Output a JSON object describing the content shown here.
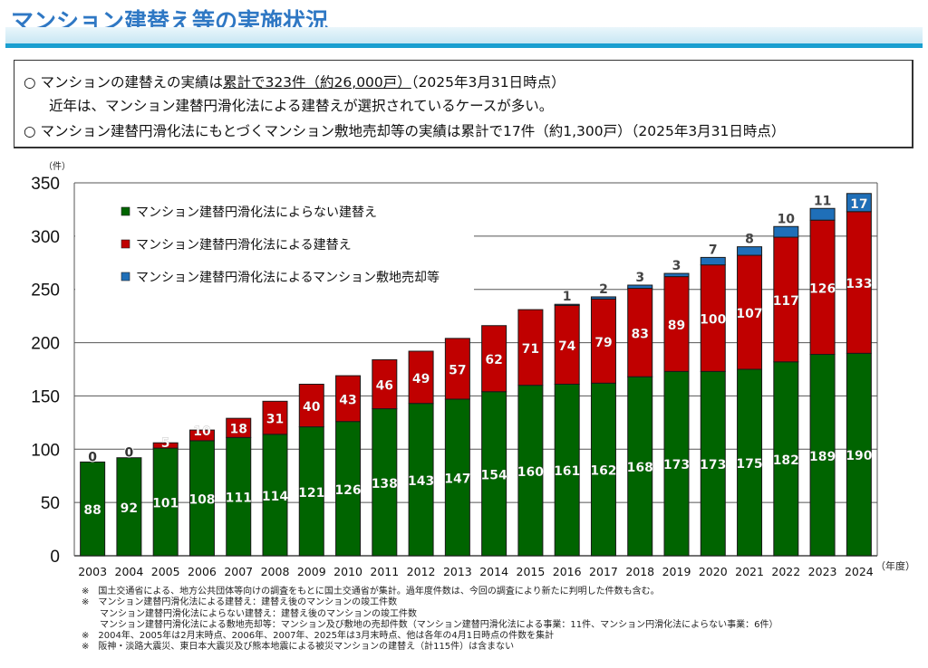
{
  "header": {
    "title": "マンション建替え等の実施状況"
  },
  "summary": {
    "line1_prefix": "○ マンションの建替えの実績は",
    "line1_underlined": "累計で323件（約26,000戸）",
    "line1_suffix": "（2025年3月31日時点）",
    "line2": "近年は、マンション建替円滑化法による建替えが選択されているケースが多い。",
    "line3": "○ マンション建替円滑化法にもとづくマンション敷地売却等の実績は累計で17件（約1,300戸）（2025年3月31日時点）"
  },
  "notes": [
    "※　国土交通省による、地方公共団体等向けの調査をもとに国土交通省が集計。過年度件数は、今回の調査により新たに判明した件数も含む。",
    "※　マンション建替円滑化法による建替え：建替え後のマンションの竣工件数",
    "　　マンション建替円滑化法によらない建替え：建替え後のマンションの竣工件数",
    "　　マンション建替円滑化法による敷地売却等：マンション及び敷地の売却件数（マンション建替円滑化法による事業：11件、マンション円滑化法によらない事業：6件）",
    "※　2004年、2005年は2月末時点、2006年、2007年、2025年は3月末時点、他は各年の4月1日時点の件数を集計",
    "※　阪神・淡路大震災、東日本大震災及び熊本地震による被災マンションの建替え（計115件）は含まない"
  ],
  "chart_data": {
    "type": "bar",
    "stacked": true,
    "ylabel": "（件）",
    "xlabel": "（年度）",
    "ylim": [
      0,
      350
    ],
    "yticks": [
      0,
      50,
      100,
      150,
      200,
      250,
      300,
      350
    ],
    "grid": true,
    "legend_position": "top-left",
    "categories": [
      "2003",
      "2004",
      "2005",
      "2006",
      "2007",
      "2008",
      "2009",
      "2010",
      "2011",
      "2012",
      "2013",
      "2014",
      "2015",
      "2016",
      "2017",
      "2018",
      "2019",
      "2020",
      "2021",
      "2022",
      "2023",
      "2024"
    ],
    "series": [
      {
        "name": "マンション建替円滑化法によらない建替え",
        "color": "#006400",
        "values": [
          88,
          92,
          101,
          108,
          111,
          114,
          121,
          126,
          138,
          143,
          147,
          154,
          160,
          161,
          162,
          168,
          173,
          173,
          175,
          182,
          189,
          190
        ]
      },
      {
        "name": "マンション建替円滑化法による建替え",
        "color": "#c00000",
        "values": [
          0,
          0,
          5,
          10,
          18,
          31,
          40,
          43,
          46,
          49,
          57,
          62,
          71,
          74,
          79,
          83,
          89,
          100,
          107,
          117,
          126,
          133
        ]
      },
      {
        "name": "マンション建替円滑化法によるマンション敷地売却等",
        "color": "#1f6fb8",
        "values": [
          null,
          null,
          null,
          null,
          null,
          null,
          null,
          null,
          null,
          null,
          null,
          null,
          null,
          1,
          2,
          3,
          3,
          7,
          8,
          10,
          11,
          17
        ]
      }
    ]
  }
}
